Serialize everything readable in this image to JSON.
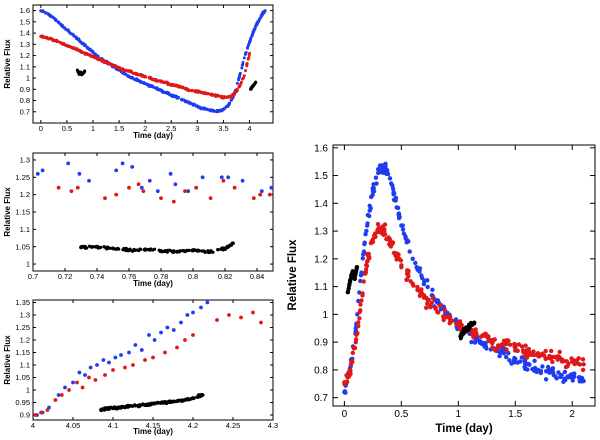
{
  "colors": {
    "blue": "#1f3cf0",
    "red": "#e01818",
    "black": "#000000",
    "axis": "#000000"
  },
  "chart_data": [
    {
      "id": "p1",
      "type": "scatter",
      "title": "",
      "xlabel": "Time (day)",
      "ylabel": "Relative Flux",
      "xlim": [
        -0.15,
        4.45
      ],
      "ylim": [
        0.6,
        1.65
      ],
      "xticks": [
        0,
        0.5,
        1,
        1.5,
        2,
        2.5,
        3,
        3.5,
        4
      ],
      "xticklabels": [
        "0",
        "0.5",
        "1",
        "1.5",
        "2",
        "2.5",
        "3",
        "3.5",
        "4"
      ],
      "yticks": [
        0.7,
        0.8,
        0.9,
        1.0,
        1.1,
        1.2,
        1.3,
        1.4,
        1.5,
        1.6
      ],
      "yticklabels": [
        "0.7",
        "0.8",
        "0.9",
        "1",
        "1.1",
        "1.2",
        "1.3",
        "1.4",
        "1.5",
        "1.6"
      ],
      "series": [
        {
          "name": "blue",
          "color": "blue",
          "x": [
            0,
            0.1,
            0.2,
            0.3,
            0.4,
            0.5,
            0.6,
            0.7,
            0.8,
            0.9,
            1.0,
            1.1,
            1.2,
            1.3,
            1.4,
            1.5,
            1.6,
            1.7,
            1.8,
            1.9,
            2.0,
            2.1,
            2.2,
            2.3,
            2.4,
            2.5,
            2.6,
            2.7,
            2.8,
            2.9,
            3.0,
            3.1,
            3.2,
            3.3,
            3.4,
            3.5,
            3.6,
            3.7,
            3.8,
            3.9,
            4.0,
            4.05,
            4.1,
            4.15,
            4.2,
            4.25,
            4.3
          ],
          "y": [
            1.6,
            1.58,
            1.55,
            1.51,
            1.47,
            1.43,
            1.39,
            1.35,
            1.31,
            1.27,
            1.23,
            1.19,
            1.16,
            1.13,
            1.1,
            1.07,
            1.04,
            1.01,
            0.99,
            0.97,
            0.95,
            0.93,
            0.91,
            0.89,
            0.87,
            0.85,
            0.83,
            0.81,
            0.79,
            0.77,
            0.75,
            0.73,
            0.72,
            0.71,
            0.705,
            0.72,
            0.76,
            0.85,
            1.0,
            1.18,
            1.32,
            1.38,
            1.44,
            1.49,
            1.53,
            1.57,
            1.6
          ]
        },
        {
          "name": "red",
          "color": "red",
          "x": [
            0,
            0.1,
            0.2,
            0.3,
            0.4,
            0.5,
            0.6,
            0.7,
            0.8,
            0.9,
            1.0,
            1.1,
            1.2,
            1.3,
            1.4,
            1.5,
            1.6,
            1.7,
            1.8,
            1.9,
            2.0,
            2.1,
            2.2,
            2.3,
            2.4,
            2.5,
            2.6,
            2.7,
            2.8,
            2.9,
            3.0,
            3.1,
            3.2,
            3.3,
            3.4,
            3.5,
            3.6,
            3.7,
            3.8,
            3.9,
            4.0
          ],
          "y": [
            1.37,
            1.36,
            1.35,
            1.33,
            1.31,
            1.29,
            1.27,
            1.25,
            1.23,
            1.21,
            1.19,
            1.17,
            1.15,
            1.13,
            1.11,
            1.09,
            1.07,
            1.06,
            1.04,
            1.03,
            1.01,
            1.0,
            0.98,
            0.97,
            0.96,
            0.94,
            0.93,
            0.92,
            0.9,
            0.89,
            0.88,
            0.87,
            0.86,
            0.85,
            0.84,
            0.83,
            0.83,
            0.85,
            0.92,
            1.02,
            1.22
          ]
        },
        {
          "name": "black",
          "color": "black",
          "x": [
            0.7,
            0.72,
            0.74,
            0.76,
            0.78,
            0.8,
            0.82,
            0.84,
            4.02,
            4.05,
            4.08,
            4.12
          ],
          "y": [
            1.07,
            1.05,
            1.04,
            1.05,
            1.03,
            1.04,
            1.05,
            1.06,
            0.9,
            0.92,
            0.94,
            0.96
          ]
        }
      ]
    },
    {
      "id": "p2",
      "type": "scatter",
      "title": "",
      "xlabel": "Time (day)",
      "ylabel": "Relative Flux",
      "xlim": [
        0.7,
        0.85
      ],
      "ylim": [
        0.98,
        1.32
      ],
      "xticks": [
        0.7,
        0.72,
        0.74,
        0.76,
        0.78,
        0.8,
        0.82,
        0.84
      ],
      "xticklabels": [
        "0.7",
        "0.72",
        "0.74",
        "0.76",
        "0.78",
        "0.8",
        "0.82",
        "0.84"
      ],
      "yticks": [
        1.0,
        1.05,
        1.1,
        1.15,
        1.2,
        1.25,
        1.3
      ],
      "yticklabels": [
        "1",
        "1.05",
        "1.1",
        "1.15",
        "1.2",
        "1.25",
        "1.3"
      ],
      "series": [
        {
          "name": "blue",
          "color": "blue",
          "x": [
            0.703,
            0.706,
            0.722,
            0.729,
            0.735,
            0.752,
            0.756,
            0.762,
            0.768,
            0.773,
            0.778,
            0.786,
            0.789,
            0.797,
            0.806,
            0.818,
            0.822,
            0.831,
            0.843,
            0.849
          ],
          "y": [
            1.26,
            1.27,
            1.29,
            1.26,
            1.24,
            1.27,
            1.29,
            1.28,
            1.22,
            1.24,
            1.21,
            1.26,
            1.23,
            1.21,
            1.25,
            1.25,
            1.25,
            1.24,
            1.21,
            1.22
          ]
        },
        {
          "name": "red",
          "color": "red",
          "x": [
            0.716,
            0.724,
            0.728,
            0.745,
            0.752,
            0.76,
            0.766,
            0.769,
            0.78,
            0.788,
            0.795,
            0.802,
            0.811,
            0.819,
            0.826,
            0.838,
            0.842,
            0.848
          ],
          "y": [
            1.22,
            1.21,
            1.22,
            1.19,
            1.2,
            1.22,
            1.23,
            1.21,
            1.19,
            1.18,
            1.21,
            1.22,
            1.19,
            1.24,
            1.22,
            1.19,
            1.2,
            1.2
          ]
        },
        {
          "name": "black",
          "color": "black",
          "x": [
            0.73,
            0.74,
            0.75,
            0.76,
            0.77,
            0.78,
            0.79,
            0.8,
            0.81,
            0.82,
            0.825
          ],
          "y": [
            1.048,
            1.05,
            1.045,
            1.04,
            1.042,
            1.038,
            1.035,
            1.04,
            1.035,
            1.045,
            1.06
          ]
        }
      ]
    },
    {
      "id": "p3",
      "type": "scatter",
      "title": "",
      "xlabel": "Time (day)",
      "ylabel": "Relative Flux",
      "xlim": [
        4.0,
        4.3
      ],
      "ylim": [
        0.88,
        1.36
      ],
      "xticks": [
        4.0,
        4.05,
        4.1,
        4.15,
        4.2,
        4.25,
        4.3
      ],
      "xticklabels": [
        "4",
        "4.05",
        "4.1",
        "4.15",
        "4.2",
        "4.25",
        "4.3"
      ],
      "yticks": [
        0.9,
        0.95,
        1.0,
        1.05,
        1.1,
        1.15,
        1.2,
        1.25,
        1.3,
        1.35
      ],
      "yticklabels": [
        "0.9",
        "0.95",
        "1",
        "1.05",
        "1.1",
        "1.15",
        "1.2",
        "1.25",
        "1.3",
        "1.35"
      ],
      "series": [
        {
          "name": "blue",
          "color": "blue",
          "x": [
            4.005,
            4.012,
            4.02,
            4.032,
            4.04,
            4.05,
            4.058,
            4.065,
            4.072,
            4.08,
            4.088,
            4.095,
            4.103,
            4.11,
            4.12,
            4.128,
            4.136,
            4.145,
            4.152,
            4.16,
            4.168,
            4.176,
            4.185,
            4.193,
            4.2,
            4.21,
            4.218
          ],
          "y": [
            0.9,
            0.91,
            0.93,
            0.98,
            1.01,
            1.03,
            1.07,
            1.06,
            1.09,
            1.1,
            1.12,
            1.11,
            1.13,
            1.14,
            1.15,
            1.18,
            1.16,
            1.22,
            1.2,
            1.23,
            1.25,
            1.24,
            1.27,
            1.3,
            1.31,
            1.33,
            1.35
          ]
        },
        {
          "name": "red",
          "color": "red",
          "x": [
            4.003,
            4.01,
            4.018,
            4.028,
            4.036,
            4.045,
            4.055,
            4.062,
            4.07,
            4.078,
            4.09,
            4.1,
            4.115,
            4.125,
            4.14,
            4.15,
            4.165,
            4.18,
            4.19,
            4.2,
            4.23,
            4.245,
            4.26,
            4.275,
            4.285
          ],
          "y": [
            0.9,
            0.91,
            0.92,
            0.96,
            0.98,
            1.0,
            1.03,
            1.01,
            1.05,
            1.04,
            1.06,
            1.08,
            1.09,
            1.1,
            1.12,
            1.13,
            1.15,
            1.17,
            1.2,
            1.22,
            1.28,
            1.3,
            1.29,
            1.31,
            1.27
          ]
        },
        {
          "name": "black",
          "color": "black",
          "x": [
            4.085,
            4.09,
            4.1,
            4.11,
            4.12,
            4.14,
            4.15,
            4.16,
            4.17,
            4.18,
            4.19,
            4.2,
            4.212
          ],
          "y": [
            0.92,
            0.925,
            0.928,
            0.93,
            0.935,
            0.94,
            0.945,
            0.948,
            0.952,
            0.955,
            0.96,
            0.968,
            0.98
          ]
        }
      ]
    },
    {
      "id": "p4",
      "type": "scatter",
      "title": "",
      "xlabel": "Time (day)",
      "ylabel": "Relative Flux",
      "xlim": [
        -0.1,
        2.2
      ],
      "ylim": [
        0.67,
        1.61
      ],
      "xticks": [
        0,
        0.5,
        1,
        1.5,
        2
      ],
      "xticklabels": [
        "0",
        "0.5",
        "1",
        "1.5",
        "2"
      ],
      "yticks": [
        0.7,
        0.8,
        0.9,
        1.0,
        1.1,
        1.2,
        1.3,
        1.4,
        1.5,
        1.6
      ],
      "yticklabels": [
        "0.7",
        "0.8",
        "0.9",
        "1",
        "1.1",
        "1.2",
        "1.3",
        "1.4",
        "1.5",
        "1.6"
      ],
      "series": [
        {
          "name": "blue",
          "color": "blue",
          "x": [
            0,
            0.05,
            0.1,
            0.15,
            0.2,
            0.25,
            0.3,
            0.35,
            0.4,
            0.45,
            0.5,
            0.6,
            0.7,
            0.8,
            0.9,
            1.0,
            1.1,
            1.2,
            1.3,
            1.4,
            1.5,
            1.6,
            1.7,
            1.8,
            1.9,
            2.0,
            2.1
          ],
          "y": [
            0.72,
            0.8,
            0.95,
            1.15,
            1.32,
            1.45,
            1.52,
            1.53,
            1.49,
            1.41,
            1.32,
            1.2,
            1.12,
            1.05,
            1.0,
            0.96,
            0.93,
            0.9,
            0.88,
            0.86,
            0.84,
            0.82,
            0.8,
            0.79,
            0.78,
            0.77,
            0.76
          ]
        },
        {
          "name": "red",
          "color": "red",
          "x": [
            0,
            0.05,
            0.1,
            0.15,
            0.2,
            0.25,
            0.3,
            0.35,
            0.4,
            0.45,
            0.5,
            0.6,
            0.7,
            0.8,
            0.9,
            1.0,
            1.1,
            1.2,
            1.3,
            1.4,
            1.5,
            1.6,
            1.7,
            1.8,
            1.9,
            2.0,
            2.1
          ],
          "y": [
            0.75,
            0.8,
            0.9,
            1.05,
            1.19,
            1.27,
            1.31,
            1.3,
            1.27,
            1.22,
            1.17,
            1.11,
            1.06,
            1.02,
            0.99,
            0.96,
            0.94,
            0.92,
            0.9,
            0.89,
            0.88,
            0.87,
            0.86,
            0.85,
            0.84,
            0.83,
            0.82
          ]
        },
        {
          "name": "black",
          "color": "black",
          "x": [
            0.03,
            0.05,
            0.07,
            0.09,
            0.11,
            1.02,
            1.05,
            1.08,
            1.11,
            1.14
          ],
          "y": [
            1.08,
            1.12,
            1.15,
            1.13,
            1.17,
            0.92,
            0.94,
            0.95,
            0.96,
            0.97
          ]
        }
      ]
    }
  ]
}
